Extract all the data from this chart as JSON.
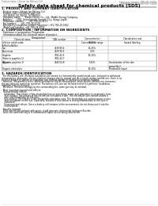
{
  "title": "Safety data sheet for chemical products (SDS)",
  "header_left": "Product name: Lithium Ion Battery Cell",
  "header_right_line1": "Substance number: SBN-049-00010",
  "header_right_line2": "Established / Revision: Dec.7.2016",
  "section1_title": "1. PRODUCT AND COMPANY IDENTIFICATION",
  "section1_lines": [
    "· Product name: Lithium Ion Battery Cell",
    "· Product code: Cylindrical-type cell",
    "  (JV1 B6500, JV1 B6500, JV1 B6504)",
    "· Company name:      Banyu Eiryou, Co., Ltd., Middle Energy Company",
    "· Address:      2001, Kannondaira, Sunoshi City, Hyogo, Japan",
    "· Telephone number:      +81-799-20-4111",
    "· Fax number:      +81-799-26-4129",
    "· Emergency telephone number (daytime): +81-799-20-3662",
    "  (Night and holiday): +81-799-26-4124"
  ],
  "section2_title": "2. COMPOSITION / INFORMATION ON INGREDIENTS",
  "section2_intro": "· Substance or preparation: Preparation",
  "section2_sub": "· Information about the chemical nature of product:",
  "col_headers": [
    "Chemical name",
    "CAS number",
    "Concentration /\nConcentration range",
    "Classification and\nhazard labeling"
  ],
  "col_header_group": "Component",
  "table_rows": [
    [
      "Lithium cobalt oxide\n(LiMn/Co/Ni/Ox)",
      "-",
      "30-50%",
      ""
    ],
    [
      "Iron",
      "7439-89-6",
      "15-25%",
      ""
    ],
    [
      "Aluminium",
      "7429-90-5",
      "2-5%",
      ""
    ],
    [
      "Graphite\n(Ratio in graphite-1)\n(All ratio graphite-1)",
      "7782-42-5\n7782-44-7",
      "10-20%",
      ""
    ],
    [
      "Copper",
      "7440-50-8",
      "5-15%",
      "Sensitization of the skin\ngroup No.2"
    ],
    [
      "Organic electrolyte",
      "-",
      "10-20%",
      "Flammable liquid"
    ]
  ],
  "section3_title": "3. HAZARDS IDENTIFICATION",
  "section3_lines": [
    "  For this battery cell, chemical substances are stored in a hermetically sealed metal case, designed to withstand",
    "temperatures, pressures, electro-chemical changes during normal use. As a result, during normal-use, there is no",
    "physical danger of ignition or expiration and thermal-danger of hazardous materials leakage.",
    "  However, if exposed to a fire, added mechanical shocks, decomposed, when electric without any measures,",
    "the gas releases cannot be operated. The battery cell case will be breached of fire-patterns, hazardous",
    "materials may be released.",
    "  Moreover, if heated strongly by the surrounding fire, some gas may be emitted."
  ],
  "bullet1": "· Most important hazard and effects:",
  "human_health": "  Human health effects:",
  "health_lines": [
    "    Inhalation: The release of the electrolyte has an anesthesia action and stimulates in respiratory tract.",
    "    Skin contact: The release of the electrolyte stimulates a skin. The electrolyte skin contact causes a",
    "    sore and stimulation on the skin.",
    "    Eye contact: The release of the electrolyte stimulates eyes. The electrolyte eye contact causes a sore",
    "    and stimulation on the eye. Especially, substance that causes a strong inflammation of the eyes is",
    "    contained."
  ],
  "env_lines": [
    "    Environmental effects: Since a battery cell remains in the environment, do not throw out it into the",
    "    environment."
  ],
  "bullet2": "· Specific hazards:",
  "specific_lines": [
    "  If the electrolyte contacts with water, it will generate detrimental hydrogen fluoride.",
    "  Since the used electrolyte is inflammable liquid, do not bring close to fire."
  ],
  "bg_color": "#ffffff",
  "border_color": "#999999",
  "gray_text": "#666666"
}
